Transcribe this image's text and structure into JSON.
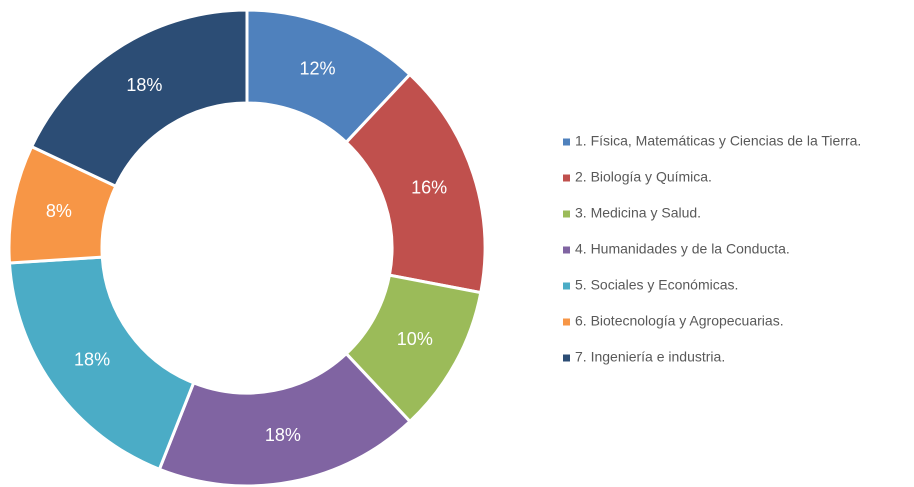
{
  "chart_data": {
    "type": "donut",
    "categories": [
      "1. Física, Matemáticas y Ciencias de la Tierra.",
      "2. Biología y Química.",
      "3. Medicina y Salud.",
      "4. Humanidades y de la Conducta.",
      "5. Sociales y Económicas.",
      "6. Biotecnología y Agropecuarias.",
      "7. Ingeniería e industria."
    ],
    "values": [
      12,
      16,
      10,
      18,
      18,
      8,
      18
    ],
    "value_labels": [
      "12%",
      "16%",
      "10%",
      "18%",
      "18%",
      "8%",
      "18%"
    ],
    "colors": [
      "#4f81bd",
      "#c0504d",
      "#9bbb59",
      "#8064a2",
      "#4bacc6",
      "#f79646",
      "#2c4d75"
    ],
    "legend": "right"
  }
}
